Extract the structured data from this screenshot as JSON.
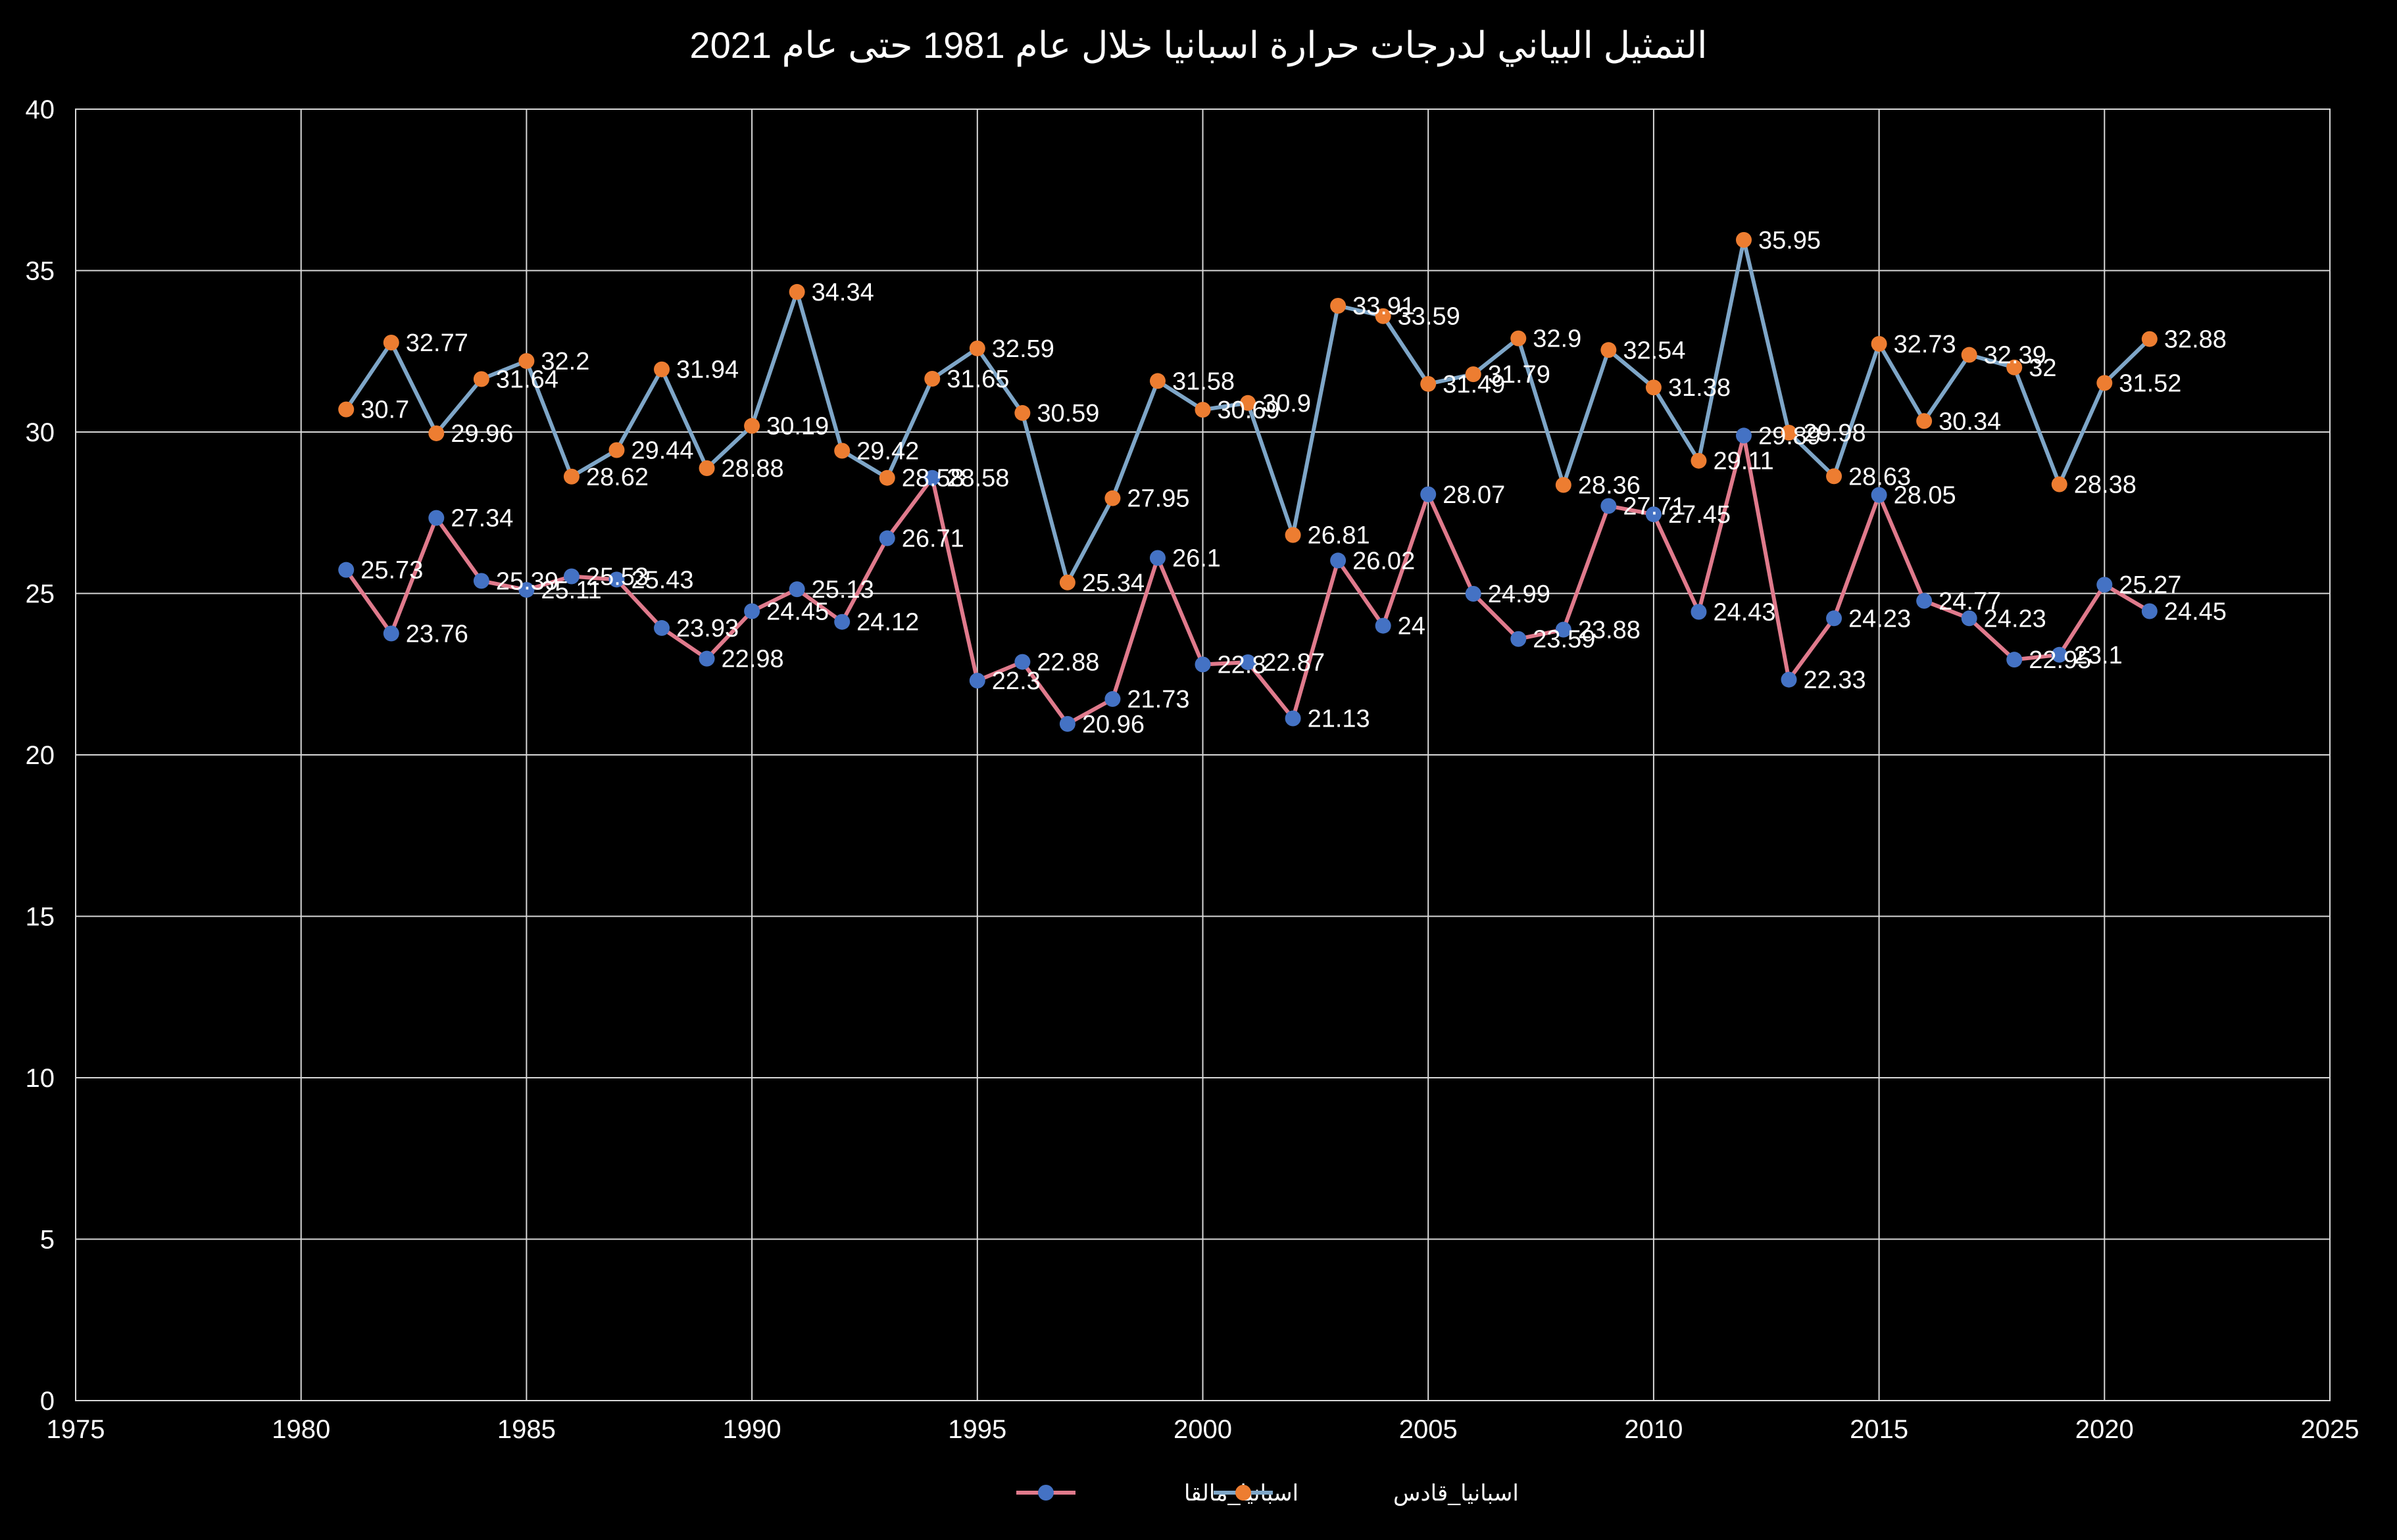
{
  "chart_data": {
    "type": "line",
    "title": "التمثيل البياني لدرجات حرارة  اسبانيا خلال عام 1981 حتى عام 2021",
    "xlabel": "",
    "ylabel": "",
    "xlim": [
      1975,
      2025
    ],
    "ylim": [
      0,
      40
    ],
    "x_ticks": [
      1975,
      1980,
      1985,
      1990,
      1995,
      2000,
      2005,
      2010,
      2015,
      2020,
      2025
    ],
    "y_ticks": [
      0,
      5,
      10,
      15,
      20,
      25,
      30,
      35,
      40
    ],
    "grid": true,
    "legend_position": "bottom",
    "x": [
      1981,
      1982,
      1983,
      1984,
      1985,
      1986,
      1987,
      1988,
      1989,
      1990,
      1991,
      1992,
      1993,
      1994,
      1995,
      1996,
      1997,
      1998,
      1999,
      2000,
      2001,
      2002,
      2003,
      2004,
      2005,
      2006,
      2007,
      2008,
      2009,
      2010,
      2011,
      2012,
      2013,
      2014,
      2015,
      2016,
      2017,
      2018,
      2019,
      2020,
      2021
    ],
    "series": [
      {
        "name": "اسبانيا_مالقا",
        "line_color": "#e07a8c",
        "marker_color": "#4472c4",
        "values": [
          25.73,
          23.76,
          27.34,
          25.39,
          25.11,
          25.53,
          25.43,
          23.93,
          22.98,
          24.45,
          25.13,
          24.12,
          26.71,
          28.58,
          22.3,
          22.88,
          20.96,
          21.73,
          26.1,
          22.8,
          22.87,
          21.13,
          26.02,
          24,
          28.07,
          24.99,
          23.59,
          23.88,
          27.71,
          27.45,
          24.43,
          29.89,
          22.33,
          24.23,
          28.05,
          24.77,
          24.23,
          22.95,
          23.1,
          25.27,
          24.45
        ]
      },
      {
        "name": "اسبانيا_قادس",
        "line_color": "#7ea6c8",
        "marker_color": "#ed7d31",
        "values": [
          30.7,
          32.77,
          29.96,
          31.64,
          32.2,
          28.62,
          29.44,
          31.94,
          28.88,
          30.19,
          34.34,
          29.42,
          28.58,
          31.65,
          32.59,
          30.59,
          25.34,
          27.95,
          31.58,
          30.69,
          30.9,
          26.81,
          33.91,
          33.59,
          31.49,
          31.79,
          32.9,
          28.36,
          32.54,
          31.38,
          29.11,
          35.95,
          29.98,
          28.63,
          32.73,
          30.34,
          32.39,
          32,
          28.38,
          31.52,
          32.88
        ]
      }
    ]
  },
  "colors": {
    "background": "#000000",
    "grid": "#d9d9d9",
    "text": "#ffffff"
  }
}
